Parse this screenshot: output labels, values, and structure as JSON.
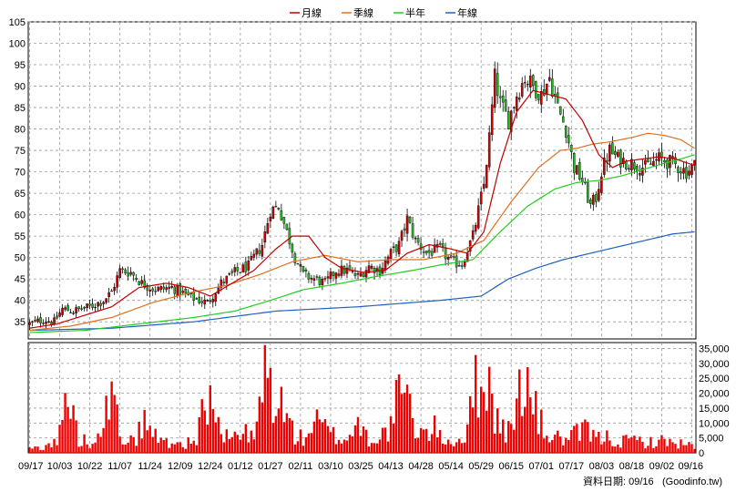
{
  "chart_data": {
    "type": "candlestick",
    "legend": {
      "placement": "top-center",
      "items": [
        {
          "name": "月線",
          "color": "#c00000"
        },
        {
          "name": "季線",
          "color": "#e07020"
        },
        {
          "name": "半年",
          "color": "#22cc22"
        },
        {
          "name": "年線",
          "color": "#2060c0"
        }
      ]
    },
    "price_axis": {
      "min": 31,
      "max": 105,
      "ticks": [
        35,
        40,
        45,
        50,
        55,
        60,
        65,
        70,
        75,
        80,
        85,
        90,
        95,
        100,
        105
      ]
    },
    "volume_axis": {
      "min": 0,
      "max": 37000,
      "ticks": [
        0,
        5000,
        10000,
        15000,
        20000,
        25000,
        30000,
        35000
      ],
      "tick_labels": [
        "0",
        "5,000",
        "10,000",
        "15,000",
        "20,000",
        "25,000",
        "30,000",
        "35,000"
      ]
    },
    "x_tick_labels": [
      "09/17",
      "10/03",
      "10/22",
      "11/07",
      "11/24",
      "12/09",
      "12/24",
      "01/12",
      "01/27",
      "02/11",
      "03/10",
      "03/25",
      "04/13",
      "04/28",
      "05/14",
      "05/29",
      "06/15",
      "07/01",
      "07/17",
      "08/03",
      "08/18",
      "09/02",
      "09/16"
    ],
    "x_tick_index": [
      0,
      11,
      22,
      33,
      44,
      55,
      66,
      77,
      88,
      99,
      110,
      121,
      132,
      143,
      154,
      165,
      176,
      187,
      198,
      209,
      220,
      231,
      242
    ],
    "price_anchors": [
      [
        0,
        34.5
      ],
      [
        5,
        35.5
      ],
      [
        9,
        35
      ],
      [
        12,
        38
      ],
      [
        16,
        37.5
      ],
      [
        22,
        38.5
      ],
      [
        27,
        40
      ],
      [
        30,
        42
      ],
      [
        33,
        47
      ],
      [
        37,
        46.5
      ],
      [
        41,
        44
      ],
      [
        46,
        42.5
      ],
      [
        52,
        43
      ],
      [
        58,
        41
      ],
      [
        62,
        40
      ],
      [
        65,
        39.5
      ],
      [
        70,
        44
      ],
      [
        75,
        46.5
      ],
      [
        80,
        48
      ],
      [
        85,
        53
      ],
      [
        88,
        61
      ],
      [
        91,
        62
      ],
      [
        94,
        56
      ],
      [
        97,
        50
      ],
      [
        100,
        46
      ],
      [
        104,
        45
      ],
      [
        108,
        44
      ],
      [
        112,
        47
      ],
      [
        116,
        47
      ],
      [
        120,
        45.5
      ],
      [
        124,
        48
      ],
      [
        128,
        47
      ],
      [
        132,
        51
      ],
      [
        135,
        53
      ],
      [
        138,
        59
      ],
      [
        141,
        54
      ],
      [
        145,
        51
      ],
      [
        150,
        52
      ],
      [
        154,
        49
      ],
      [
        158,
        48.5
      ],
      [
        162,
        55
      ],
      [
        166,
        67
      ],
      [
        168,
        78
      ],
      [
        170,
        92
      ],
      [
        172,
        86
      ],
      [
        175,
        82
      ],
      [
        178,
        88
      ],
      [
        181,
        92
      ],
      [
        184,
        90
      ],
      [
        187,
        88
      ],
      [
        190,
        92
      ],
      [
        193,
        85
      ],
      [
        196,
        80
      ],
      [
        199,
        71
      ],
      [
        202,
        68
      ],
      [
        205,
        62
      ],
      [
        207,
        64
      ],
      [
        209,
        70
      ],
      [
        212,
        75
      ],
      [
        215,
        73
      ],
      [
        220,
        72
      ],
      [
        225,
        71
      ],
      [
        230,
        73
      ],
      [
        235,
        72
      ],
      [
        240,
        70
      ],
      [
        243,
        71.5
      ]
    ],
    "volume_anchors": [
      [
        0,
        1500
      ],
      [
        5,
        2500
      ],
      [
        10,
        4000
      ],
      [
        14,
        22000
      ],
      [
        18,
        5000
      ],
      [
        22,
        4000
      ],
      [
        26,
        13000
      ],
      [
        30,
        20000
      ],
      [
        33,
        8000
      ],
      [
        38,
        4000
      ],
      [
        42,
        12000
      ],
      [
        47,
        5000
      ],
      [
        52,
        4000
      ],
      [
        56,
        3500
      ],
      [
        60,
        4000
      ],
      [
        63,
        14000
      ],
      [
        67,
        22000
      ],
      [
        70,
        5000
      ],
      [
        73,
        6000
      ],
      [
        78,
        8000
      ],
      [
        82,
        5000
      ],
      [
        86,
        30000
      ],
      [
        90,
        22000
      ],
      [
        94,
        13000
      ],
      [
        97,
        7000
      ],
      [
        100,
        5000
      ],
      [
        104,
        12000
      ],
      [
        108,
        9000
      ],
      [
        112,
        6000
      ],
      [
        116,
        5000
      ],
      [
        120,
        12000
      ],
      [
        124,
        5000
      ],
      [
        128,
        6000
      ],
      [
        132,
        10000
      ],
      [
        136,
        26000
      ],
      [
        140,
        12000
      ],
      [
        144,
        7000
      ],
      [
        148,
        9000
      ],
      [
        152,
        5000
      ],
      [
        156,
        4000
      ],
      [
        160,
        8000
      ],
      [
        164,
        32000
      ],
      [
        168,
        25000
      ],
      [
        172,
        9000
      ],
      [
        176,
        8000
      ],
      [
        180,
        30000
      ],
      [
        184,
        18000
      ],
      [
        188,
        8000
      ],
      [
        192,
        6000
      ],
      [
        196,
        5000
      ],
      [
        200,
        7000
      ],
      [
        204,
        9000
      ],
      [
        207,
        5000
      ],
      [
        211,
        6000
      ],
      [
        216,
        4000
      ],
      [
        220,
        5000
      ],
      [
        226,
        4000
      ],
      [
        232,
        4500
      ],
      [
        238,
        3500
      ],
      [
        243,
        2500
      ]
    ],
    "ma_month": [
      [
        0,
        33.5
      ],
      [
        10,
        34.5
      ],
      [
        20,
        36.5
      ],
      [
        30,
        38.5
      ],
      [
        40,
        43
      ],
      [
        50,
        44
      ],
      [
        58,
        43
      ],
      [
        66,
        41
      ],
      [
        74,
        44
      ],
      [
        82,
        47
      ],
      [
        90,
        52
      ],
      [
        96,
        55
      ],
      [
        102,
        55
      ],
      [
        108,
        50
      ],
      [
        114,
        47.5
      ],
      [
        122,
        46.5
      ],
      [
        130,
        47
      ],
      [
        138,
        51
      ],
      [
        146,
        53
      ],
      [
        154,
        52
      ],
      [
        160,
        51
      ],
      [
        166,
        56
      ],
      [
        172,
        72
      ],
      [
        178,
        84
      ],
      [
        184,
        89
      ],
      [
        190,
        88
      ],
      [
        196,
        87
      ],
      [
        202,
        82
      ],
      [
        208,
        74
      ],
      [
        213,
        71
      ],
      [
        218,
        72.5
      ],
      [
        224,
        73
      ],
      [
        230,
        73.5
      ],
      [
        236,
        73
      ],
      [
        243,
        71.5
      ]
    ],
    "ma_quarter": [
      [
        0,
        33
      ],
      [
        15,
        34
      ],
      [
        30,
        36
      ],
      [
        45,
        39.5
      ],
      [
        60,
        42
      ],
      [
        72,
        43.5
      ],
      [
        84,
        46
      ],
      [
        96,
        49
      ],
      [
        108,
        50.5
      ],
      [
        120,
        49
      ],
      [
        132,
        49.5
      ],
      [
        144,
        49.5
      ],
      [
        156,
        51
      ],
      [
        166,
        54
      ],
      [
        176,
        63
      ],
      [
        186,
        71
      ],
      [
        194,
        75
      ],
      [
        200,
        75.5
      ],
      [
        206,
        76.5
      ],
      [
        212,
        77
      ],
      [
        220,
        78
      ],
      [
        226,
        79
      ],
      [
        232,
        78.5
      ],
      [
        238,
        77.5
      ],
      [
        243,
        75.5
      ]
    ],
    "ma_half": [
      [
        0,
        32.5
      ],
      [
        20,
        33
      ],
      [
        40,
        34.5
      ],
      [
        60,
        36
      ],
      [
        75,
        37.5
      ],
      [
        88,
        40
      ],
      [
        100,
        42.5
      ],
      [
        114,
        44
      ],
      [
        126,
        45.5
      ],
      [
        140,
        47
      ],
      [
        152,
        48.5
      ],
      [
        162,
        49.5
      ],
      [
        172,
        56
      ],
      [
        182,
        62
      ],
      [
        192,
        66
      ],
      [
        200,
        67.5
      ],
      [
        208,
        68
      ],
      [
        216,
        69
      ],
      [
        224,
        70.5
      ],
      [
        232,
        72
      ],
      [
        238,
        73
      ],
      [
        243,
        74
      ]
    ],
    "ma_year": [
      [
        0,
        33
      ],
      [
        30,
        33.5
      ],
      [
        60,
        35
      ],
      [
        90,
        37.5
      ],
      [
        120,
        38.5
      ],
      [
        150,
        40
      ],
      [
        165,
        41
      ],
      [
        175,
        45
      ],
      [
        185,
        47.5
      ],
      [
        195,
        49.5
      ],
      [
        205,
        51
      ],
      [
        215,
        52.5
      ],
      [
        225,
        54
      ],
      [
        235,
        55.5
      ],
      [
        243,
        56
      ]
    ],
    "candle_count": 244,
    "footer": "資料日期: 09/16",
    "source": "(Goodinfo.tw)"
  }
}
